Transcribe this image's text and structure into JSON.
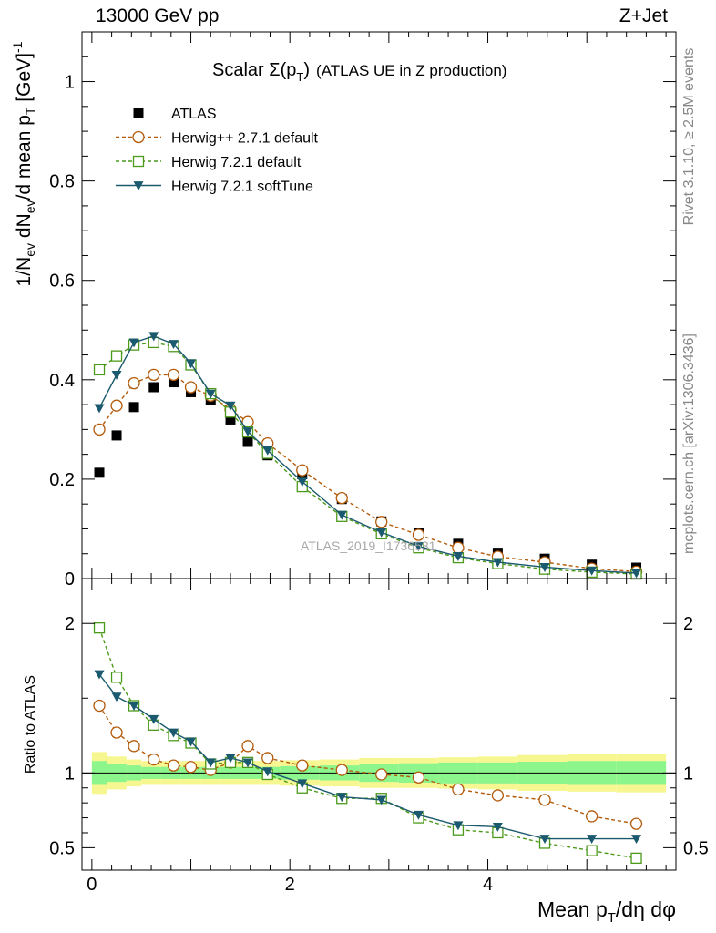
{
  "header": {
    "energy_label": "13000 GeV pp",
    "process_label": "Z+Jet"
  },
  "side": {
    "rivet_label": "Rivet 3.1.10, ≥ 2.5M events",
    "mcplots_label": "mcplots.cern.ch [arXiv:1306.3436]"
  },
  "chart_data": [
    {
      "type": "scatter",
      "panel": "main",
      "title_main": "Scalar Σ(p",
      "title_sub": "T",
      "title_close": ")",
      "title_rest": "(ATLAS UE in Z production)",
      "ylabel": "1/N_ev dN_ev/d mean p_T [GeV]^-1",
      "xlabel": "",
      "watermark": "ATLAS_2019_I1736531",
      "xlim": [
        -0.1,
        5.9
      ],
      "ylim": [
        0,
        1.1
      ],
      "yticks": [
        0,
        0.2,
        0.4,
        0.6,
        0.8,
        1
      ],
      "ytick_labels": [
        "0",
        "0.2",
        "0.4",
        "0.6",
        "0.8",
        "1"
      ],
      "legend_position": "top-left",
      "x": [
        0.075,
        0.25,
        0.425,
        0.625,
        0.825,
        1.0,
        1.2,
        1.4,
        1.575,
        1.775,
        2.125,
        2.525,
        2.925,
        3.3,
        3.7,
        4.1,
        4.575,
        5.05,
        5.5
      ],
      "series": [
        {
          "name": "ATLAS",
          "color": "#000000",
          "marker": "filled-square",
          "line": "none",
          "values": [
            0.213,
            0.288,
            0.345,
            0.385,
            0.395,
            0.375,
            0.36,
            0.32,
            0.275,
            0.248,
            0.21,
            0.16,
            0.115,
            0.092,
            0.07,
            0.052,
            0.04,
            0.028,
            0.022
          ]
        },
        {
          "name": "Herwig++ 2.7.1 default",
          "color": "#b35a09",
          "marker": "open-circle",
          "line": "dashed",
          "values": [
            0.3,
            0.348,
            0.393,
            0.41,
            0.41,
            0.385,
            0.368,
            0.34,
            0.315,
            0.272,
            0.218,
            0.162,
            0.114,
            0.088,
            0.062,
            0.044,
            0.033,
            0.02,
            0.014
          ]
        },
        {
          "name": "Herwig 7.2.1 default",
          "color": "#4c9a1a",
          "marker": "open-square",
          "line": "dashed",
          "values": [
            0.42,
            0.448,
            0.47,
            0.475,
            0.467,
            0.43,
            0.372,
            0.335,
            0.295,
            0.252,
            0.185,
            0.125,
            0.09,
            0.062,
            0.042,
            0.03,
            0.019,
            0.013,
            0.009
          ]
        },
        {
          "name": "Herwig 7.2.1 softTune",
          "color": "#1b5a6e",
          "marker": "filled-triangle-down",
          "line": "solid",
          "values": [
            0.343,
            0.41,
            0.475,
            0.488,
            0.472,
            0.433,
            0.372,
            0.348,
            0.296,
            0.258,
            0.195,
            0.128,
            0.093,
            0.065,
            0.045,
            0.033,
            0.023,
            0.016,
            0.011
          ]
        }
      ]
    },
    {
      "type": "line",
      "panel": "ratio",
      "ylabel": "Ratio to ATLAS",
      "xlabel": "Mean p_T/dη dφ",
      "xlim": [
        -0.1,
        5.9
      ],
      "ylim": [
        0.35,
        2.3
      ],
      "xticks": [
        0,
        2,
        4
      ],
      "xtick_labels": [
        "0",
        "2",
        "4"
      ],
      "yticks": [
        0.5,
        1,
        2
      ],
      "ytick_labels": [
        "0.5",
        "1",
        "2"
      ],
      "reference": 1,
      "band_colors": {
        "inner": "#8cf58c",
        "outer": "#f7f792"
      },
      "band_edges": [
        0.0,
        0.15,
        0.35,
        0.5,
        0.7,
        0.9,
        1.1,
        1.3,
        1.5,
        1.7,
        1.9,
        2.3,
        2.7,
        3.1,
        3.5,
        3.9,
        4.3,
        4.8,
        5.3,
        5.8
      ],
      "band_inner": [
        0.08,
        0.06,
        0.05,
        0.04,
        0.04,
        0.04,
        0.04,
        0.04,
        0.04,
        0.04,
        0.045,
        0.05,
        0.06,
        0.065,
        0.07,
        0.07,
        0.075,
        0.08,
        0.08
      ],
      "band_outer": [
        0.14,
        0.11,
        0.09,
        0.08,
        0.08,
        0.08,
        0.08,
        0.08,
        0.08,
        0.08,
        0.085,
        0.09,
        0.1,
        0.1,
        0.105,
        0.11,
        0.12,
        0.125,
        0.13
      ],
      "x": [
        0.075,
        0.25,
        0.425,
        0.625,
        0.825,
        1.0,
        1.2,
        1.4,
        1.575,
        1.775,
        2.125,
        2.525,
        2.925,
        3.3,
        3.7,
        4.1,
        4.575,
        5.05,
        5.5
      ],
      "series": [
        {
          "name": "Herwig++ 2.7.1 default",
          "color": "#b35a09",
          "marker": "open-circle",
          "line": "dashed",
          "values": [
            1.45,
            1.27,
            1.18,
            1.09,
            1.05,
            1.04,
            1.02,
            1.07,
            1.18,
            1.1,
            1.05,
            1.02,
            0.99,
            0.97,
            0.89,
            0.85,
            0.82,
            0.71,
            0.66
          ]
        },
        {
          "name": "Herwig 7.2.1 default",
          "color": "#4c9a1a",
          "marker": "open-square",
          "line": "dashed",
          "values": [
            1.97,
            1.64,
            1.45,
            1.32,
            1.25,
            1.2,
            1.06,
            1.07,
            1.07,
            0.99,
            0.9,
            0.83,
            0.83,
            0.7,
            0.62,
            0.6,
            0.53,
            0.48,
            0.43
          ]
        },
        {
          "name": "Herwig 7.2.1 softTune",
          "color": "#1b5a6e",
          "marker": "filled-triangle-down",
          "line": "solid",
          "values": [
            1.66,
            1.51,
            1.45,
            1.36,
            1.27,
            1.21,
            1.07,
            1.1,
            1.07,
            1.01,
            0.93,
            0.84,
            0.82,
            0.72,
            0.65,
            0.64,
            0.56,
            0.56,
            0.56
          ]
        }
      ]
    }
  ]
}
